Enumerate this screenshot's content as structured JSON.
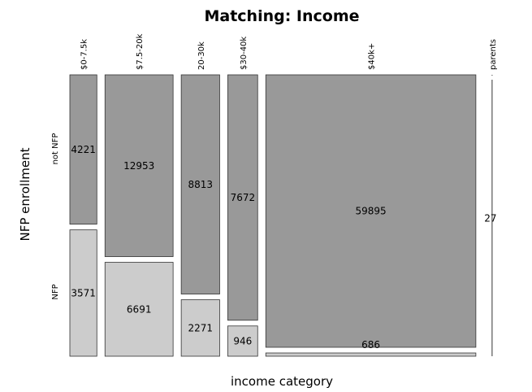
{
  "chart_data": {
    "type": "mosaic",
    "title": "Matching: Income",
    "xlabel": "income category",
    "ylabel": "NFP enrollment",
    "categories": [
      "$0-7.5k",
      "$7.5-20k",
      "20-30k",
      "$30-40k",
      "$40k+",
      "parents"
    ],
    "rows": [
      "not NFP",
      "NFP"
    ],
    "series": [
      {
        "name": "not NFP",
        "values": [
          4221,
          12953,
          8813,
          7672,
          59895,
          null
        ]
      },
      {
        "name": "NFP",
        "values": [
          3571,
          6691,
          2271,
          946,
          686,
          27
        ]
      }
    ],
    "colors": {
      "not NFP": "#999999",
      "NFP": "#cccccc"
    }
  }
}
